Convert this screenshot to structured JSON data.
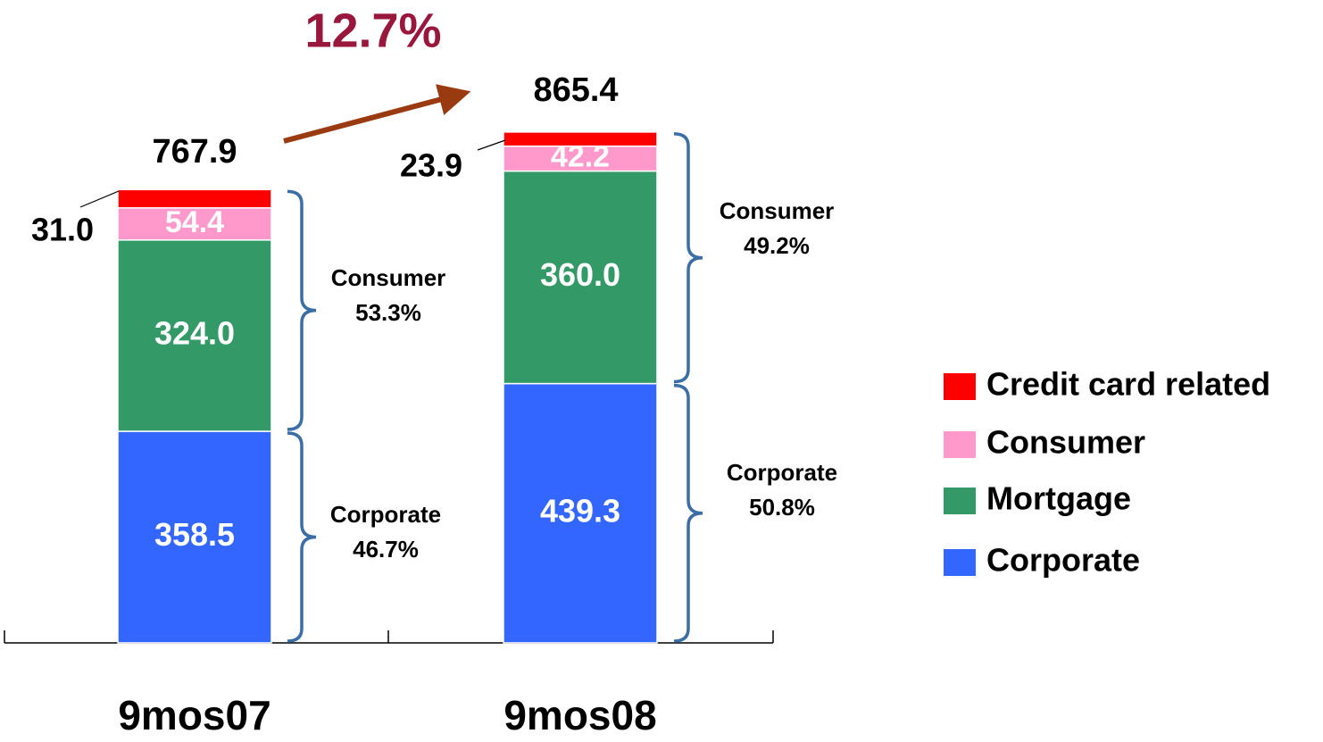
{
  "chart_data": {
    "type": "stacked-bar",
    "categories": [
      "9mos07",
      "9mos08"
    ],
    "series": [
      {
        "name": "Corporate",
        "color": "#3366ff",
        "values": [
          358.5,
          439.3
        ],
        "value_labels": [
          "358.5",
          "439.3"
        ]
      },
      {
        "name": "Mortgage",
        "color": "#339966",
        "values": [
          324.0,
          360.0
        ],
        "value_labels": [
          "324.0",
          "360.0"
        ]
      },
      {
        "name": "Consumer",
        "color": "#ff99cc",
        "values": [
          54.4,
          42.2
        ],
        "value_labels": [
          "54.4",
          "42.2"
        ]
      },
      {
        "name": "Credit card related",
        "color": "#ff0000",
        "values": [
          31.0,
          23.9
        ],
        "value_labels": [
          "31.0",
          "23.9"
        ]
      }
    ],
    "totals": [
      767.9,
      865.4
    ],
    "growth": {
      "value": 12.7,
      "label": "12.7%"
    },
    "brackets": [
      [
        {
          "label": "Corporate",
          "share": {
            "value": 46.7,
            "label": "46.7%"
          }
        },
        {
          "label": "Consumer",
          "share": {
            "value": 53.3,
            "label": "53.3%"
          }
        }
      ],
      [
        {
          "label": "Corporate",
          "share": {
            "value": 50.8,
            "label": "50.8%"
          }
        },
        {
          "label": "Consumer",
          "share": {
            "value": 49.2,
            "label": "49.2%"
          }
        }
      ]
    ],
    "ylim": [
      0,
      900
    ],
    "legend": "right"
  }
}
